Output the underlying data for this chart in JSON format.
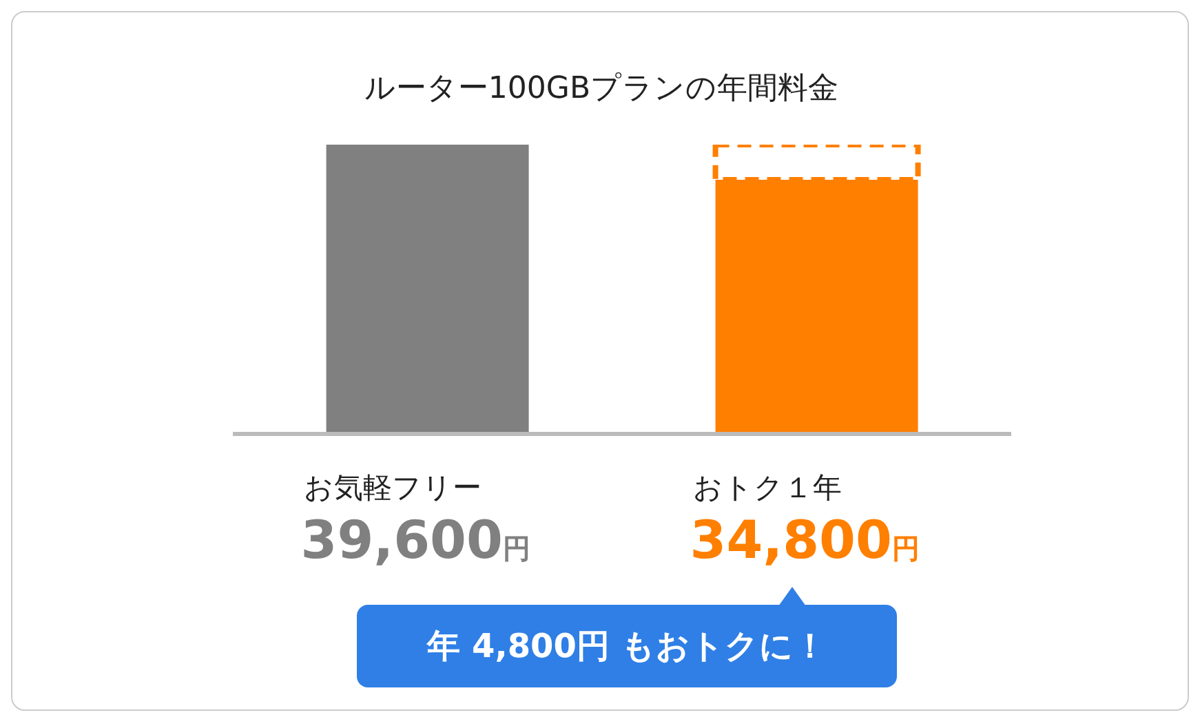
{
  "chart_data": {
    "type": "bar",
    "title": "ルーター100GBプランの年間料金",
    "categories": [
      "お気軽フリー",
      "おトク１年"
    ],
    "stacked": true,
    "series": [
      {
        "colors": [
          "#808080",
          "#ff7f00"
        ],
        "color": "#808080",
        "values": [
          39600,
          34800
        ],
        "value_labels": [
          "39,600円",
          "34,800円"
        ]
      },
      {
        "color": "#ff7f00",
        "line_style": "dashed",
        "values": [
          null,
          4800
        ]
      }
    ],
    "annotations": [
      "年 4,800円 もおトクに！"
    ]
  }
}
